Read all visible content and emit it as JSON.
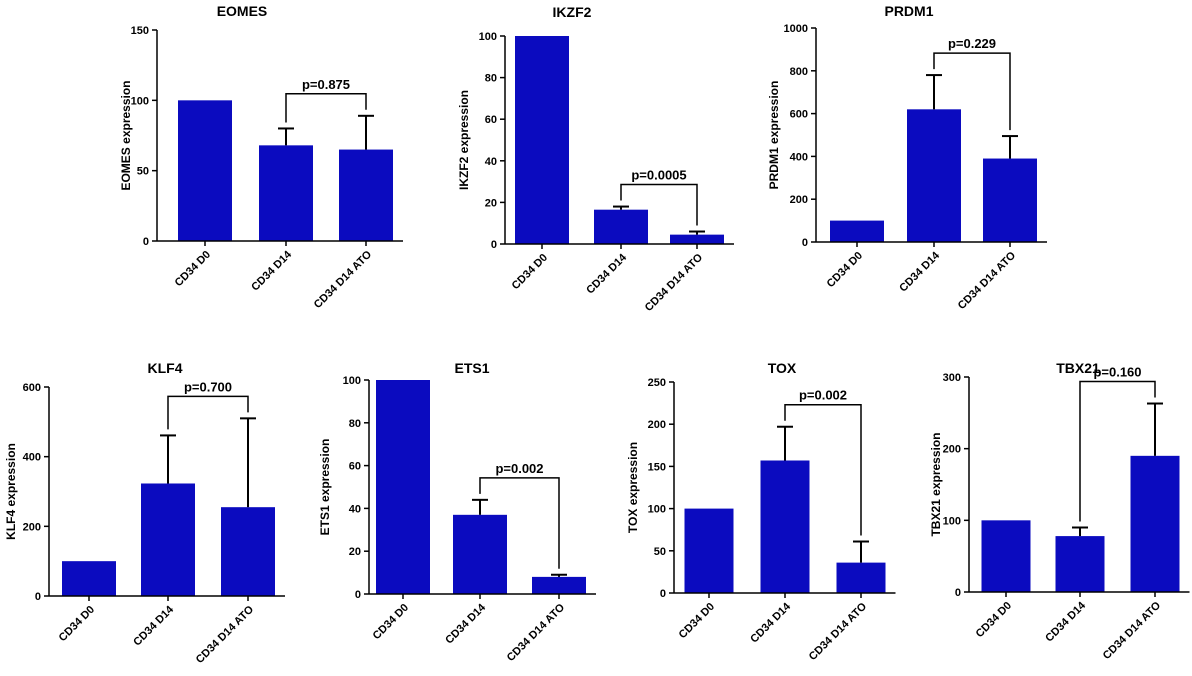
{
  "colors": {
    "bar": "#0b0bbf",
    "axis": "#000000"
  },
  "chart_data": [
    {
      "id": "eomes",
      "type": "bar",
      "title": "EOMES",
      "ylabel": "EOMES expression",
      "categories": [
        "CD34 D0",
        "CD34 D14",
        "CD34 D14 ATO"
      ],
      "values": [
        100,
        68,
        65
      ],
      "errors": [
        0,
        12,
        24
      ],
      "ylim": [
        0,
        150
      ],
      "yticks": [
        "0",
        "50",
        "100",
        "150"
      ],
      "comparison": {
        "from": 1,
        "to": 2,
        "label": "p=0.875"
      }
    },
    {
      "id": "ikzf2",
      "type": "bar",
      "title": "IKZF2",
      "ylabel": "IKZF2 expression",
      "categories": [
        "CD34 D0",
        "CD34 D14",
        "CD34 D14 ATO"
      ],
      "values": [
        100,
        16.5,
        4.5
      ],
      "errors": [
        0,
        1.5,
        1.5
      ],
      "ylim": [
        0,
        100
      ],
      "yticks": [
        "0",
        "20",
        "40",
        "60",
        "80",
        "100"
      ],
      "comparison": {
        "from": 1,
        "to": 2,
        "label": "p=0.0005"
      }
    },
    {
      "id": "prdm1",
      "type": "bar",
      "title": "PRDM1",
      "ylabel": "PRDM1 expression",
      "categories": [
        "CD34 D0",
        "CD34 D14",
        "CD34 D14 ATO"
      ],
      "values": [
        100,
        620,
        390
      ],
      "errors": [
        0,
        160,
        105
      ],
      "ylim": [
        0,
        1000
      ],
      "yticks": [
        "0",
        "200",
        "400",
        "600",
        "800",
        "1000"
      ],
      "comparison": {
        "from": 1,
        "to": 2,
        "label": "p=0.229"
      }
    },
    {
      "id": "klf4",
      "type": "bar",
      "title": "KLF4",
      "ylabel": "KLF4 expression",
      "categories": [
        "CD34 D0",
        "CD34 D14",
        "CD34 D14 ATO"
      ],
      "values": [
        100,
        323,
        255
      ],
      "errors": [
        0,
        138,
        255
      ],
      "ylim": [
        0,
        600
      ],
      "yticks": [
        "0",
        "200",
        "400",
        "600"
      ],
      "comparison": {
        "from": 1,
        "to": 2,
        "label": "p=0.700"
      }
    },
    {
      "id": "ets1",
      "type": "bar",
      "title": "ETS1",
      "ylabel": "ETS1 expression",
      "categories": [
        "CD34 D0",
        "CD34 D14",
        "CD34 D14 ATO"
      ],
      "values": [
        100,
        37,
        8
      ],
      "errors": [
        0,
        7,
        1
      ],
      "ylim": [
        0,
        100
      ],
      "yticks": [
        "0",
        "20",
        "40",
        "60",
        "80",
        "100"
      ],
      "comparison": {
        "from": 1,
        "to": 2,
        "label": "p=0.002"
      }
    },
    {
      "id": "tox",
      "type": "bar",
      "title": "TOX",
      "ylabel": "TOX expression",
      "categories": [
        "CD34 D0",
        "CD34 D14",
        "CD34 D14 ATO"
      ],
      "values": [
        100,
        157,
        36
      ],
      "errors": [
        0,
        40,
        25
      ],
      "ylim": [
        0,
        250
      ],
      "yticks": [
        "0",
        "50",
        "100",
        "150",
        "200",
        "250"
      ],
      "comparison": {
        "from": 1,
        "to": 2,
        "label": "p=0.002"
      }
    },
    {
      "id": "tbx21",
      "type": "bar",
      "title": "TBX21",
      "ylabel": "TBX21 expression",
      "categories": [
        "CD34 D0",
        "CD34 D14",
        "CD34 D14 ATO"
      ],
      "values": [
        100,
        78,
        190
      ],
      "errors": [
        0,
        12,
        73
      ],
      "ylim": [
        0,
        300
      ],
      "yticks": [
        "0",
        "100",
        "200",
        "300"
      ],
      "comparison": {
        "from": 1,
        "to": 2,
        "label": "p=0.160"
      }
    }
  ]
}
